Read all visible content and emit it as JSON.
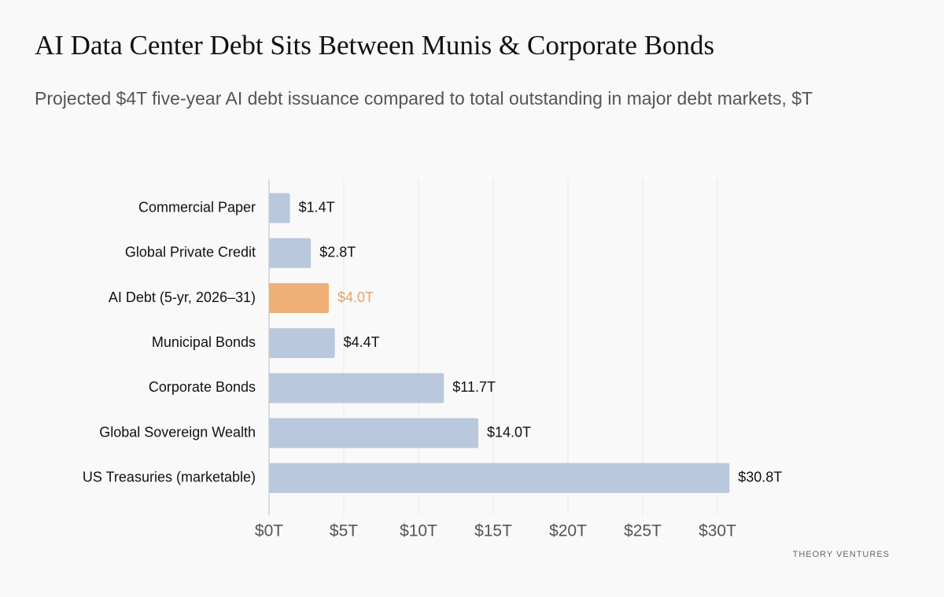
{
  "chart_data": {
    "type": "hbar",
    "title": "AI Data Center Debt Sits Between Munis & Corporate Bonds",
    "subtitle": "Projected $4T five-year AI debt issuance compared to total outstanding in major debt markets, $T",
    "categories": [
      "Commercial Paper",
      "Global Private Credit",
      "AI Debt (5-yr, 2026–31)",
      "Municipal Bonds",
      "Corporate Bonds",
      "Global Sovereign Wealth",
      "US Treasuries (marketable)"
    ],
    "values": [
      1.4,
      2.8,
      4.0,
      4.4,
      11.7,
      14.0,
      30.8
    ],
    "value_labels": [
      "$1.4T",
      "$2.8T",
      "$4.0T",
      "$4.4T",
      "$11.7T",
      "$14.0T",
      "$30.8T"
    ],
    "colors": [
      "#b9c8dc",
      "#b9c8dc",
      "#efb077",
      "#b9c8dc",
      "#b9c8dc",
      "#b9c8dc",
      "#b9c8dc"
    ],
    "value_label_colors": [
      "#111111",
      "#111111",
      "#e3a56b",
      "#111111",
      "#111111",
      "#111111",
      "#111111"
    ],
    "xlim": [
      0,
      35
    ],
    "xticks": [
      {
        "value": 0,
        "label": "$0T"
      },
      {
        "value": 5,
        "label": "$5T"
      },
      {
        "value": 10,
        "label": "$10T"
      },
      {
        "value": 15,
        "label": "$15T"
      },
      {
        "value": 20,
        "label": "$20T"
      },
      {
        "value": 25,
        "label": "$25T"
      },
      {
        "value": 30,
        "label": "$30T"
      }
    ],
    "grid": true,
    "source": "THEORY VENTURES"
  }
}
